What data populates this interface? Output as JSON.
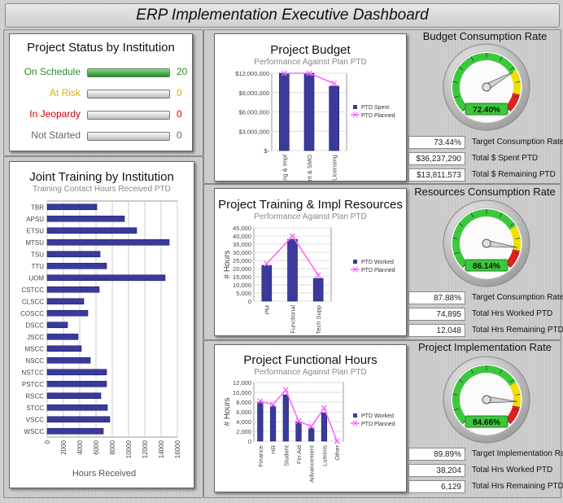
{
  "header": {
    "title": "ERP Implementation Executive Dashboard"
  },
  "project_status": {
    "title": "Project Status by Institution",
    "rows": [
      {
        "label": "On Schedule",
        "value": 20,
        "count": "20",
        "color": "#2e8b2e",
        "count_color": "#2e8b2e"
      },
      {
        "label": "At Risk",
        "value": 0,
        "count": "0",
        "color": "#d4b400",
        "count_color": "#d4b400"
      },
      {
        "label": "In Jeopardy",
        "value": 0,
        "count": "0",
        "color": "#d40000",
        "count_color": "#d40000"
      },
      {
        "label": "Not Started",
        "value": 0,
        "count": "0",
        "color": "#666666",
        "count_color": "#666666"
      }
    ],
    "max": 20
  },
  "joint_training": {
    "title": "Joint Training by Institution",
    "subtitle": "Training Contact Hours Received PTD"
  },
  "project_budget": {
    "title": "Project Budget",
    "subtitle": "Performance Against Plan PTD"
  },
  "training_resources": {
    "title": "Project Training & Impl Resources",
    "subtitle": "Performance Against Plan PTD"
  },
  "functional_hours": {
    "title": "Project Functional Hours",
    "subtitle": "Performance Against Plan PTD"
  },
  "budget_gauge": {
    "title": "Budget Consumption Rate",
    "value_label": "72.40%",
    "value": 72.4,
    "kpis": [
      {
        "value": "73.44%",
        "label": "Target Consumption Rate PTD"
      },
      {
        "value": "$36,237,290",
        "label": "Total $ Spent PTD"
      },
      {
        "value": "$13,811,573",
        "label": "Total $ Remaining PTD"
      }
    ]
  },
  "resources_gauge": {
    "title": "Resources Consumption Rate",
    "value_label": "86.14%",
    "value": 86.14,
    "kpis": [
      {
        "value": "87.88%",
        "label": "Target Consumption Rate PTD"
      },
      {
        "value": "74,895",
        "label": "Total Hrs Worked PTD"
      },
      {
        "value": "12,048",
        "label": "Total Hrs Remaining PTD"
      }
    ]
  },
  "implementation_gauge": {
    "title": "Project Implementation Rate",
    "value_label": "84.66%",
    "value": 84.66,
    "kpis": [
      {
        "value": "89.89%",
        "label": "Target Implementation Rate PTD"
      },
      {
        "value": "38,204",
        "label": "Total Hrs Worked PTD"
      },
      {
        "value": "6,129",
        "label": "Total Hrs Remaining PTD"
      }
    ]
  },
  "colors": {
    "bar": "#3a3a9c",
    "line": "#ff66ff",
    "gauge_green": "#3cc83c",
    "gauge_yellow": "#f0e000",
    "gauge_red": "#e02020"
  },
  "chart_data": [
    {
      "id": "joint_training",
      "type": "bar",
      "orientation": "horizontal",
      "categories": [
        "TBR",
        "APSU",
        "ETSU",
        "MTSU",
        "TSU",
        "TTU",
        "UOM",
        "CSTCC",
        "CLSCC",
        "COSCC",
        "DSCC",
        "JSCC",
        "MSCC",
        "NSCC",
        "NSTCC",
        "PSTCC",
        "RSCC",
        "STCC",
        "VSCC",
        "WSCC"
      ],
      "values": [
        6100,
        9500,
        11000,
        15000,
        6500,
        7300,
        14500,
        6400,
        4500,
        5000,
        2500,
        3800,
        4200,
        5300,
        7300,
        7300,
        6600,
        7400,
        7700,
        6900
      ],
      "xlabel": "Hours Received",
      "xlim": [
        0,
        16000
      ],
      "xticks": [
        "0",
        "2000",
        "4000",
        "6000",
        "8000",
        "10000",
        "12000",
        "14000",
        "16000"
      ],
      "grid": true
    },
    {
      "id": "project_budget",
      "type": "bar",
      "categories": [
        "Training & Impl",
        "Maint & SMO",
        "Licensing"
      ],
      "series": [
        {
          "name": "PTD Spent",
          "kind": "bar",
          "values": [
            12000000,
            12000000,
            10000000
          ]
        },
        {
          "name": "PTD Planned",
          "kind": "line",
          "values": [
            12300000,
            12100000,
            10400000
          ]
        }
      ],
      "ylim": [
        0,
        12000000
      ],
      "yticks": [
        "$-",
        "$3,000,000",
        "$6,000,000",
        "$9,000,000",
        "$12,000,000"
      ],
      "legend": "right"
    },
    {
      "id": "training_resources",
      "type": "bar",
      "categories": [
        "PM",
        "Functional",
        "Tech Supp"
      ],
      "series": [
        {
          "name": "PTD Worked",
          "kind": "bar",
          "values": [
            22000,
            38000,
            14000
          ]
        },
        {
          "name": "PTD Planned",
          "kind": "line",
          "values": [
            23000,
            40000,
            16000
          ]
        }
      ],
      "ylabel": "# Hours",
      "ylim": [
        0,
        45000
      ],
      "yticks": [
        "0",
        "5,000",
        "10,000",
        "15,000",
        "20,000",
        "25,000",
        "30,000",
        "35,000",
        "40,000",
        "45,000"
      ],
      "legend": "right"
    },
    {
      "id": "functional_hours",
      "type": "bar",
      "categories": [
        "Finance",
        "HR",
        "Student",
        "Fin Aid",
        "Advancement",
        "Luminis",
        "Other"
      ],
      "series": [
        {
          "name": "PTD Worked",
          "kind": "bar",
          "values": [
            8000,
            7200,
            9500,
            4000,
            2700,
            5800,
            0
          ]
        },
        {
          "name": "PTD Planned",
          "kind": "line",
          "values": [
            8200,
            7500,
            10500,
            4100,
            3000,
            6800,
            0
          ]
        }
      ],
      "ylabel": "# Hours",
      "ylim": [
        0,
        12000
      ],
      "yticks": [
        "0",
        "2,000",
        "4,000",
        "6,000",
        "8,000",
        "10,000",
        "12,000"
      ],
      "legend": "right"
    }
  ]
}
